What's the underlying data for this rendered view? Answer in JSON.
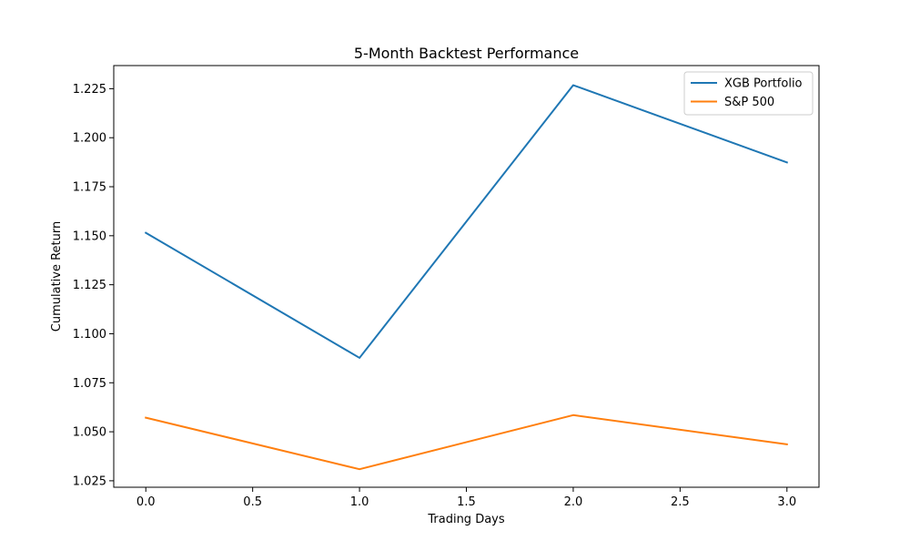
{
  "chart_data": {
    "type": "line",
    "title": "5-Month Backtest Performance",
    "xlabel": "Trading Days",
    "ylabel": "Cumulative Return",
    "x": [
      0,
      1,
      2,
      3
    ],
    "series": [
      {
        "name": "XGB Portfolio",
        "color": "#1f77b4",
        "values": [
          1.1515,
          1.0877,
          1.2268,
          1.1874
        ]
      },
      {
        "name": "S&P 500",
        "color": "#ff7f0e",
        "values": [
          1.0572,
          1.0309,
          1.0585,
          1.0436
        ]
      }
    ],
    "xlim": [
      -0.15,
      3.15
    ],
    "ylim": [
      1.0217,
      1.2368
    ],
    "xticks": [
      {
        "value": 0.0,
        "label": "0.0"
      },
      {
        "value": 0.5,
        "label": "0.5"
      },
      {
        "value": 1.0,
        "label": "1.0"
      },
      {
        "value": 1.5,
        "label": "1.5"
      },
      {
        "value": 2.0,
        "label": "2.0"
      },
      {
        "value": 2.5,
        "label": "2.5"
      },
      {
        "value": 3.0,
        "label": "3.0"
      }
    ],
    "yticks": [
      {
        "value": 1.025,
        "label": "1.025"
      },
      {
        "value": 1.05,
        "label": "1.050"
      },
      {
        "value": 1.075,
        "label": "1.075"
      },
      {
        "value": 1.1,
        "label": "1.100"
      },
      {
        "value": 1.125,
        "label": "1.125"
      },
      {
        "value": 1.15,
        "label": "1.150"
      },
      {
        "value": 1.175,
        "label": "1.175"
      },
      {
        "value": 1.2,
        "label": "1.200"
      },
      {
        "value": 1.225,
        "label": "1.225"
      }
    ],
    "grid": false,
    "legend_position": "top-right"
  }
}
